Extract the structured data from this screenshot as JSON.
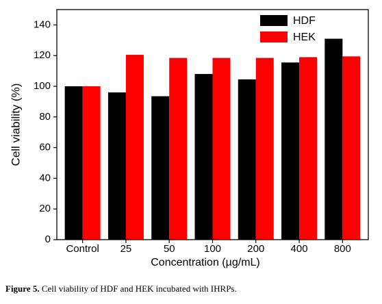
{
  "chart_data": {
    "type": "bar",
    "x_label": "Concentration (µg/mL)",
    "y_label": "Cell viability (%)",
    "categories": [
      "Control",
      "25",
      "50",
      "100",
      "200",
      "400",
      "800"
    ],
    "series": [
      {
        "name": "HDF",
        "color": "#000000",
        "values": [
          100,
          96,
          93.5,
          108,
          104.5,
          115.5,
          131
        ]
      },
      {
        "name": "HEK",
        "color": "#ff0000",
        "values": [
          100,
          120.5,
          118.5,
          118.5,
          118.5,
          119,
          119.5
        ]
      }
    ],
    "ylim": [
      0,
      150
    ],
    "yticks": [
      0,
      20,
      40,
      60,
      80,
      100,
      120,
      140
    ],
    "legend": "upper right"
  },
  "caption": {
    "label": "Figure 5.",
    "text": "Cell viability of HDF and HEK incubated with IHRPs."
  }
}
